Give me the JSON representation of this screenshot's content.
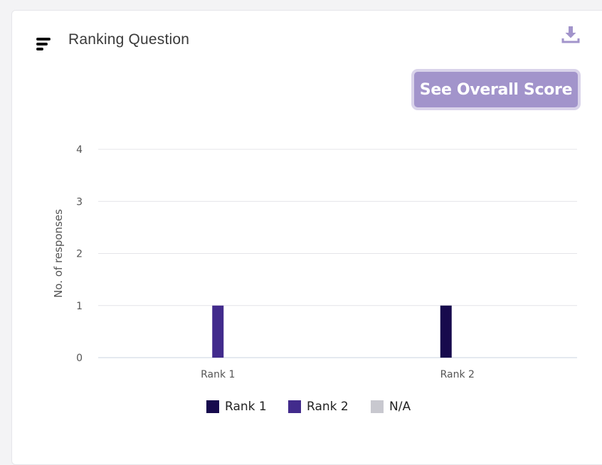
{
  "card": {
    "title": "Ranking Question",
    "title_icon": "sort-lines-icon",
    "download_icon": "download-icon",
    "overall_button_label": "See Overall Score"
  },
  "colors": {
    "rank1": "#170a4d",
    "rank2": "#422b8c",
    "na": "#c8c8cf",
    "accent": "#a294cb"
  },
  "chart_data": {
    "type": "bar",
    "categories": [
      "Rank 1",
      "Rank 2"
    ],
    "series": [
      {
        "name": "Rank 1",
        "values": [
          0,
          1
        ]
      },
      {
        "name": "Rank 2",
        "values": [
          1,
          0
        ]
      },
      {
        "name": "N/A",
        "values": [
          0,
          0
        ]
      }
    ],
    "ylabel": "No. of responses",
    "xlabel": "",
    "ylim": [
      0,
      4
    ],
    "yticks": [
      "0",
      "1",
      "2",
      "3",
      "4"
    ],
    "grid": true,
    "legend_position": "bottom"
  }
}
